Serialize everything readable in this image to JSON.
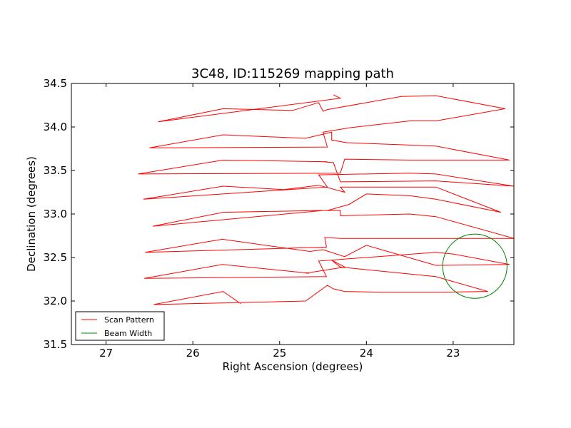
{
  "chart_data": {
    "type": "line",
    "title": "3C48, ID:115269 mapping path",
    "xlabel": "Right Ascension (degrees)",
    "ylabel": "Declination (degrees)",
    "xlim": [
      27.4,
      22.3
    ],
    "ylim": [
      31.5,
      34.5
    ],
    "x_ticks": [
      27,
      26,
      25,
      24,
      23
    ],
    "y_ticks": [
      31.5,
      32.0,
      32.5,
      33.0,
      33.5,
      34.0,
      34.5
    ],
    "x_tick_labels": [
      "27",
      "26",
      "25",
      "24",
      "23"
    ],
    "y_tick_labels": [
      "31.5",
      "32.0",
      "32.5",
      "33.0",
      "33.5",
      "34.0",
      "34.5"
    ],
    "grid": false,
    "legend_position": "lower-left",
    "series": [
      {
        "name": "Scan Pattern",
        "color": "#ff0000",
        "x": [
          25.45,
          25.65,
          26.45,
          24.7,
          24.45,
          24.38,
          24.25,
          23.8,
          23.2,
          22.6,
          23.2,
          24.3,
          24.4,
          24.25,
          24.7,
          24.66,
          25.66,
          26.56,
          24.46,
          24.55,
          23.2,
          23.0,
          22.35,
          23.2,
          24.0,
          24.25,
          24.5,
          24.65,
          25.66,
          26.55,
          24.46,
          24.48,
          24.3,
          23.2,
          22.3,
          23.2,
          23.5,
          24.3,
          24.3,
          24.55,
          25.65,
          26.46,
          24.5,
          24.45,
          24.2,
          24.0,
          23.5,
          23.2,
          22.45,
          23.2,
          24.3,
          24.25,
          24.55,
          24.95,
          25.65,
          26.57,
          24.45,
          24.55,
          23.5,
          23.2,
          22.3,
          23.2,
          24.3,
          24.38,
          24.5,
          24.45,
          25.65,
          26.63,
          24.3,
          24.3,
          24.25,
          23.5,
          23.2,
          22.35,
          23.2,
          24.23,
          24.4,
          24.4,
          24.4,
          24.7,
          25.65,
          26.5,
          24.45,
          24.5,
          24.2,
          24.2,
          23.5,
          23.2,
          22.4,
          23.2,
          23.6,
          24.45,
          24.5,
          24.55,
          24.85,
          25.65,
          26.4,
          24.3,
          24.38
        ],
        "y": [
          31.97,
          32.11,
          31.96,
          32.0,
          32.18,
          32.14,
          32.11,
          32.1,
          32.1,
          32.11,
          32.28,
          32.39,
          32.47,
          32.39,
          32.32,
          32.32,
          32.42,
          32.26,
          32.28,
          32.46,
          32.56,
          32.54,
          32.42,
          32.41,
          32.64,
          32.51,
          32.59,
          32.57,
          32.71,
          32.56,
          32.62,
          32.73,
          32.72,
          32.72,
          32.72,
          32.97,
          33.0,
          32.98,
          33.04,
          33.04,
          33.02,
          32.86,
          33.04,
          33.04,
          33.11,
          33.23,
          33.21,
          33.17,
          33.02,
          33.31,
          33.31,
          33.25,
          33.33,
          33.28,
          33.32,
          33.17,
          33.31,
          33.45,
          33.47,
          33.46,
          33.32,
          33.38,
          33.37,
          33.59,
          33.6,
          33.6,
          33.62,
          33.46,
          33.47,
          33.47,
          33.63,
          33.62,
          33.62,
          33.62,
          33.78,
          33.82,
          33.85,
          33.94,
          33.94,
          33.87,
          33.91,
          33.76,
          33.77,
          33.94,
          33.99,
          33.99,
          34.07,
          34.07,
          34.21,
          34.36,
          34.35,
          34.2,
          34.18,
          34.28,
          34.19,
          34.21,
          34.06,
          34.33,
          34.37
        ]
      },
      {
        "name": "Beam Width",
        "color": "#008000",
        "shape": "circle",
        "center": [
          22.75,
          32.4
        ],
        "radius_deg": 0.37
      }
    ]
  }
}
